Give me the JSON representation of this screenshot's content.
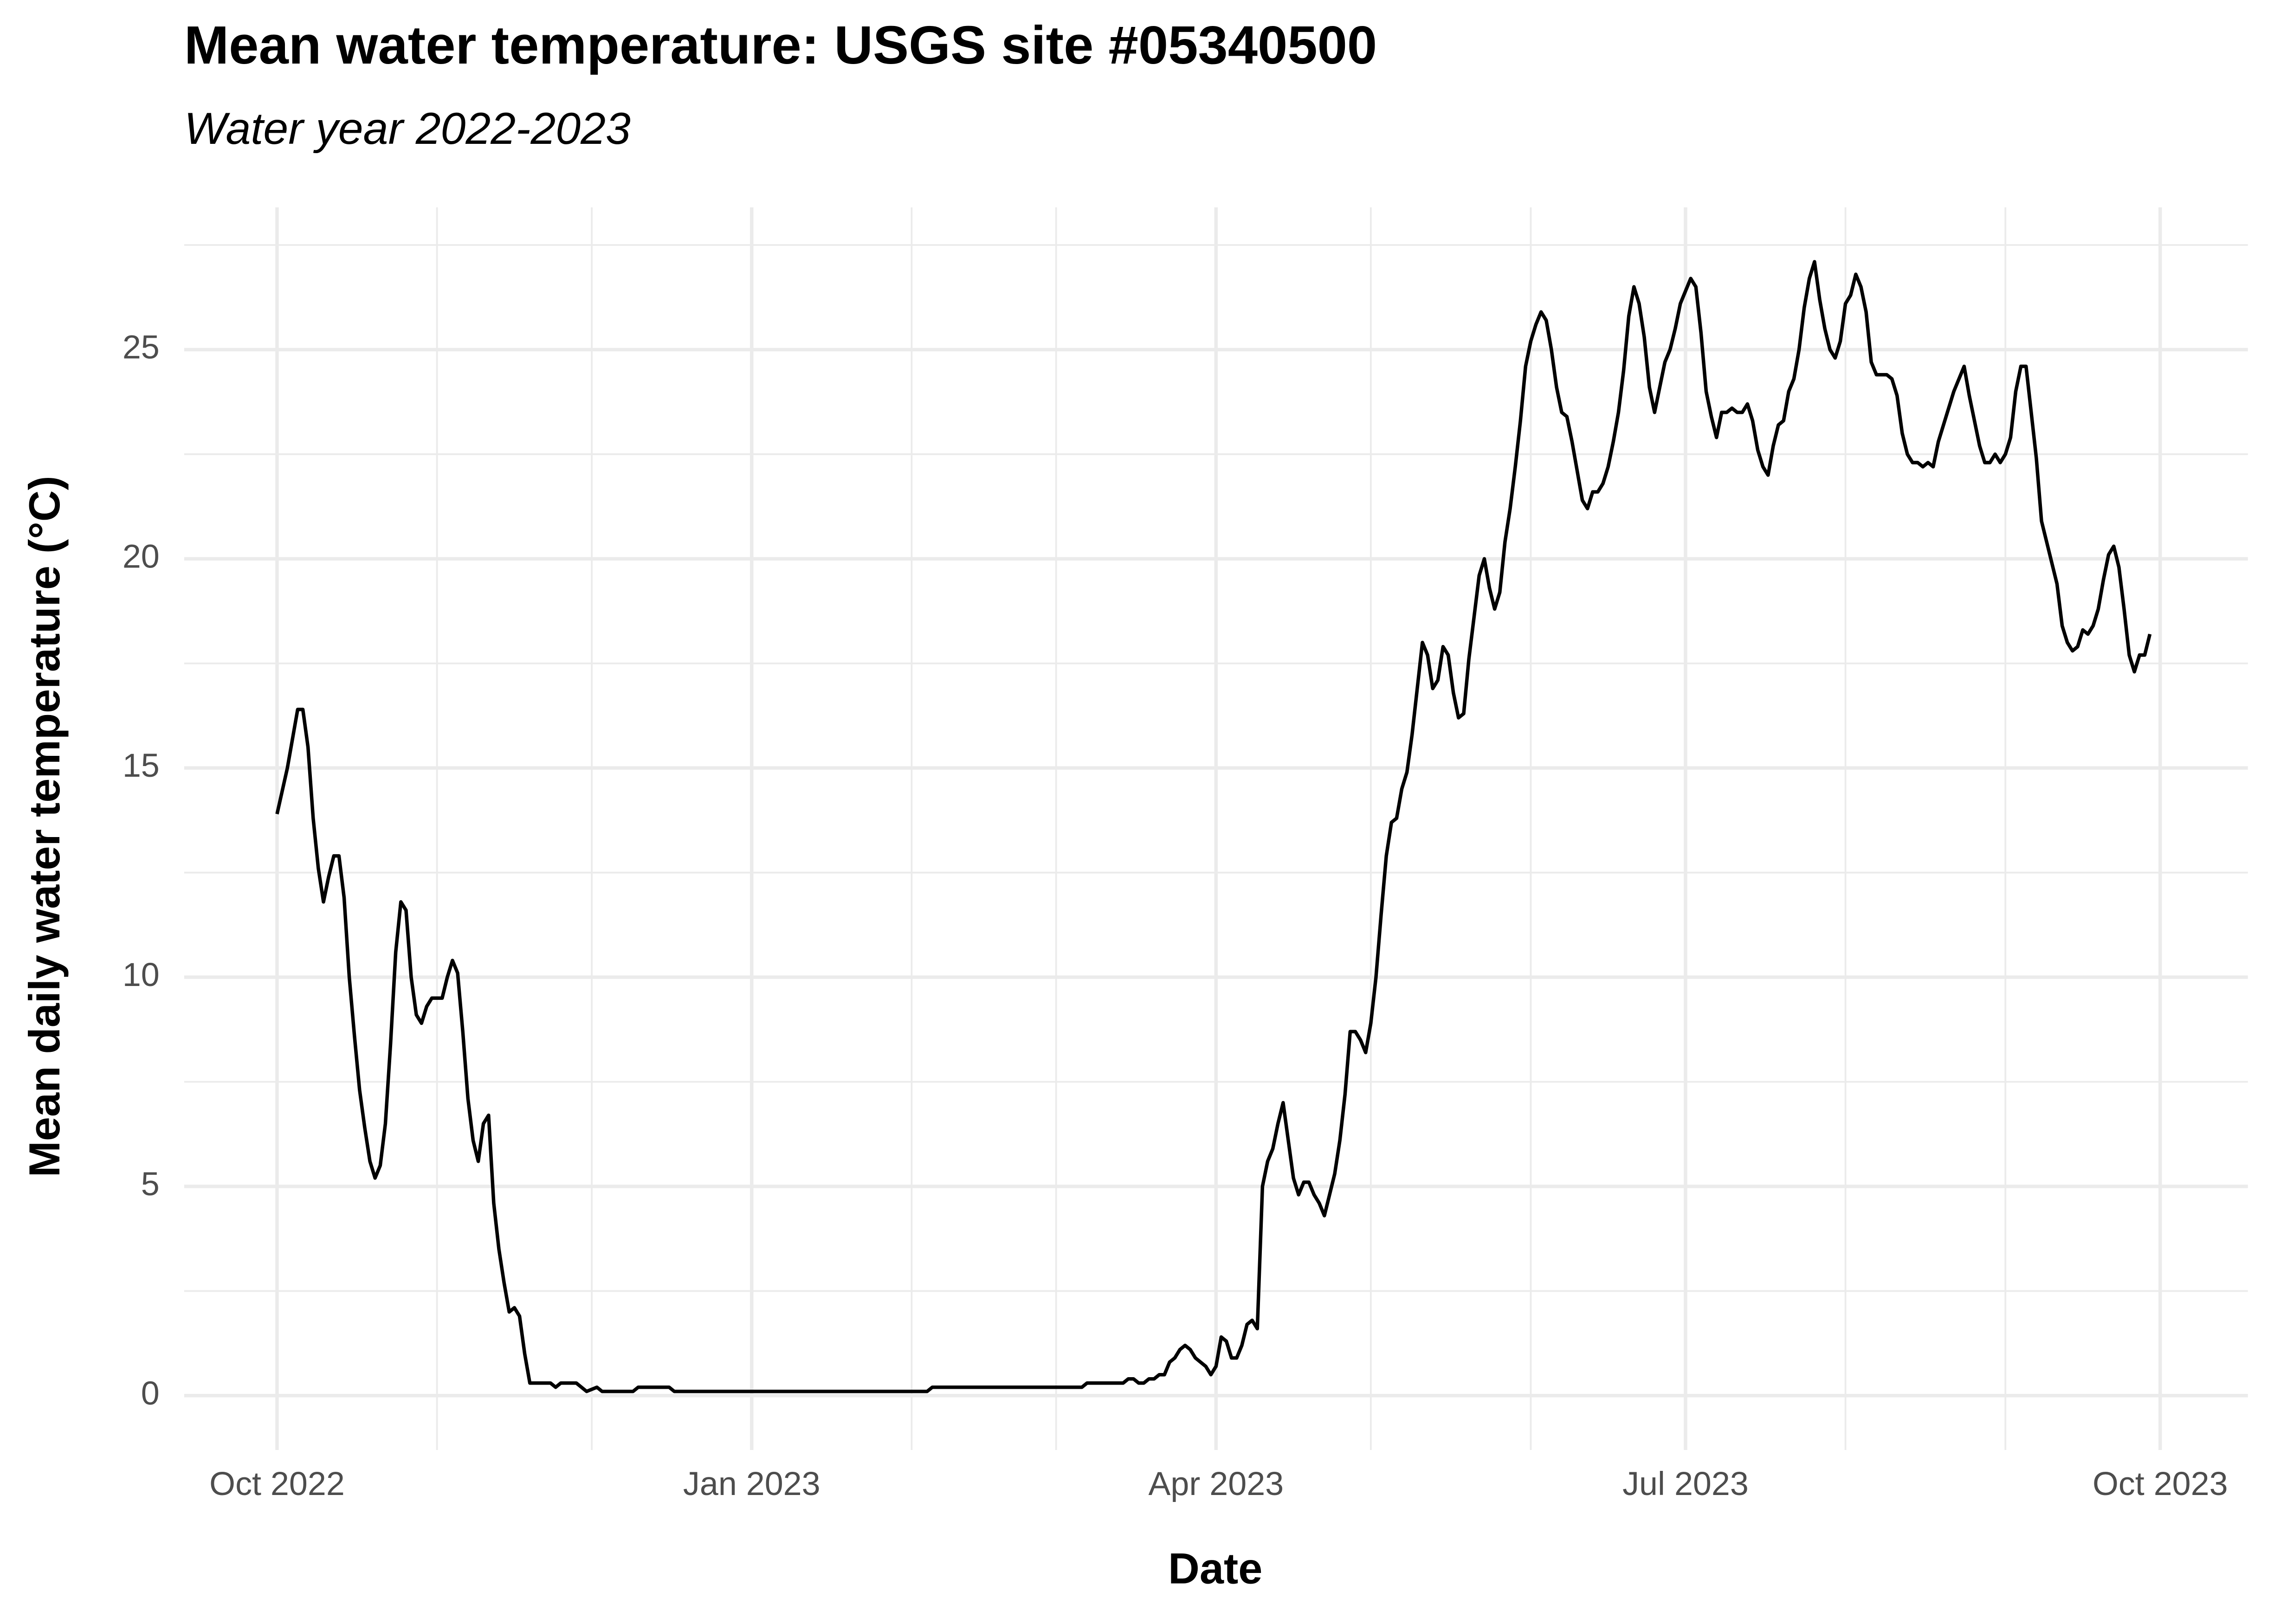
{
  "chart_data": {
    "type": "line",
    "title": "Mean water temperature: USGS site #05340500",
    "subtitle": "Water year 2022-2023",
    "x_label": "Date",
    "y_label": "Mean daily water temperature (°C)",
    "color": "#000000",
    "grid": true,
    "xlim": [
      "2022-09-13",
      "2023-10-18"
    ],
    "ylim": [
      -1.3,
      28.4
    ],
    "xticks": [
      {
        "value": "2022-10-01",
        "label": "Oct 2022"
      },
      {
        "value": "2023-01-01",
        "label": "Jan 2023"
      },
      {
        "value": "2023-04-01",
        "label": "Apr 2023"
      },
      {
        "value": "2023-07-01",
        "label": "Jul 2023"
      },
      {
        "value": "2023-10-01",
        "label": "Oct 2023"
      }
    ],
    "x_minor_ticks": [
      "2022-11-01",
      "2022-12-01",
      "2023-02-01",
      "2023-03-01",
      "2023-05-01",
      "2023-06-01",
      "2023-08-01",
      "2023-09-01"
    ],
    "yticks": [
      0,
      5,
      10,
      15,
      20,
      25
    ],
    "y_minor_ticks": [
      2.5,
      7.5,
      12.5,
      17.5,
      22.5,
      27.5
    ],
    "x": [
      "2022-10-01",
      "2022-10-03",
      "2022-10-05",
      "2022-10-06",
      "2022-10-07",
      "2022-10-08",
      "2022-10-09",
      "2022-10-10",
      "2022-10-11",
      "2022-10-12",
      "2022-10-13",
      "2022-10-14",
      "2022-10-15",
      "2022-10-16",
      "2022-10-17",
      "2022-10-18",
      "2022-10-19",
      "2022-10-20",
      "2022-10-21",
      "2022-10-22",
      "2022-10-23",
      "2022-10-24",
      "2022-10-25",
      "2022-10-26",
      "2022-10-27",
      "2022-10-28",
      "2022-10-29",
      "2022-10-30",
      "2022-10-31",
      "2022-11-01",
      "2022-11-02",
      "2022-11-03",
      "2022-11-04",
      "2022-11-05",
      "2022-11-06",
      "2022-11-07",
      "2022-11-08",
      "2022-11-09",
      "2022-11-10",
      "2022-11-11",
      "2022-11-12",
      "2022-11-13",
      "2022-11-14",
      "2022-11-15",
      "2022-11-16",
      "2022-11-17",
      "2022-11-18",
      "2022-11-19",
      "2022-11-21",
      "2022-11-23",
      "2022-11-24",
      "2022-11-25",
      "2022-11-28",
      "2022-11-30",
      "2022-12-02",
      "2022-12-03",
      "2022-12-09",
      "2022-12-10",
      "2022-12-16",
      "2022-12-17",
      "2023-02-04",
      "2023-02-05",
      "2023-03-06",
      "2023-03-07",
      "2023-03-14",
      "2023-03-15",
      "2023-03-16",
      "2023-03-17",
      "2023-03-18",
      "2023-03-19",
      "2023-03-20",
      "2023-03-21",
      "2023-03-22",
      "2023-03-23",
      "2023-03-24",
      "2023-03-25",
      "2023-03-26",
      "2023-03-27",
      "2023-03-28",
      "2023-03-30",
      "2023-03-31",
      "2023-04-01",
      "2023-04-02",
      "2023-04-03",
      "2023-04-04",
      "2023-04-05",
      "2023-04-06",
      "2023-04-07",
      "2023-04-08",
      "2023-04-09",
      "2023-04-10",
      "2023-04-11",
      "2023-04-12",
      "2023-04-13",
      "2023-04-14",
      "2023-04-15",
      "2023-04-16",
      "2023-04-17",
      "2023-04-18",
      "2023-04-19",
      "2023-04-20",
      "2023-04-21",
      "2023-04-22",
      "2023-04-23",
      "2023-04-24",
      "2023-04-25",
      "2023-04-26",
      "2023-04-27",
      "2023-04-28",
      "2023-04-29",
      "2023-04-30",
      "2023-05-01",
      "2023-05-02",
      "2023-05-03",
      "2023-05-04",
      "2023-05-05",
      "2023-05-06",
      "2023-05-07",
      "2023-05-08",
      "2023-05-09",
      "2023-05-10",
      "2023-05-11",
      "2023-05-12",
      "2023-05-13",
      "2023-05-14",
      "2023-05-15",
      "2023-05-16",
      "2023-05-17",
      "2023-05-18",
      "2023-05-19",
      "2023-05-20",
      "2023-05-21",
      "2023-05-22",
      "2023-05-23",
      "2023-05-24",
      "2023-05-25",
      "2023-05-26",
      "2023-05-27",
      "2023-05-28",
      "2023-05-29",
      "2023-05-30",
      "2023-05-31",
      "2023-06-01",
      "2023-06-02",
      "2023-06-03",
      "2023-06-04",
      "2023-06-05",
      "2023-06-06",
      "2023-06-07",
      "2023-06-08",
      "2023-06-09",
      "2023-06-10",
      "2023-06-11",
      "2023-06-12",
      "2023-06-13",
      "2023-06-14",
      "2023-06-15",
      "2023-06-16",
      "2023-06-17",
      "2023-06-18",
      "2023-06-19",
      "2023-06-20",
      "2023-06-21",
      "2023-06-22",
      "2023-06-23",
      "2023-06-24",
      "2023-06-25",
      "2023-06-26",
      "2023-06-27",
      "2023-06-28",
      "2023-06-29",
      "2023-06-30",
      "2023-07-01",
      "2023-07-02",
      "2023-07-03",
      "2023-07-04",
      "2023-07-05",
      "2023-07-06",
      "2023-07-07",
      "2023-07-08",
      "2023-07-09",
      "2023-07-10",
      "2023-07-11",
      "2023-07-12",
      "2023-07-13",
      "2023-07-14",
      "2023-07-15",
      "2023-07-16",
      "2023-07-17",
      "2023-07-18",
      "2023-07-19",
      "2023-07-20",
      "2023-07-21",
      "2023-07-22",
      "2023-07-23",
      "2023-07-24",
      "2023-07-25",
      "2023-07-26",
      "2023-07-27",
      "2023-07-28",
      "2023-07-29",
      "2023-07-30",
      "2023-07-31",
      "2023-08-01",
      "2023-08-02",
      "2023-08-03",
      "2023-08-04",
      "2023-08-05",
      "2023-08-06",
      "2023-08-07",
      "2023-08-08",
      "2023-08-09",
      "2023-08-10",
      "2023-08-11",
      "2023-08-12",
      "2023-08-13",
      "2023-08-14",
      "2023-08-15",
      "2023-08-16",
      "2023-08-17",
      "2023-08-18",
      "2023-08-19",
      "2023-08-20",
      "2023-08-21",
      "2023-08-22",
      "2023-08-23",
      "2023-08-24",
      "2023-08-25",
      "2023-08-26",
      "2023-08-27",
      "2023-08-28",
      "2023-08-29",
      "2023-08-30",
      "2023-08-31",
      "2023-09-01",
      "2023-09-02",
      "2023-09-03",
      "2023-09-04",
      "2023-09-05",
      "2023-09-06",
      "2023-09-07",
      "2023-09-08",
      "2023-09-09",
      "2023-09-10",
      "2023-09-11",
      "2023-09-12",
      "2023-09-13",
      "2023-09-14",
      "2023-09-15",
      "2023-09-16",
      "2023-09-17",
      "2023-09-18",
      "2023-09-19",
      "2023-09-20",
      "2023-09-21",
      "2023-09-22",
      "2023-09-23",
      "2023-09-24",
      "2023-09-25",
      "2023-09-26",
      "2023-09-27",
      "2023-09-28",
      "2023-09-29"
    ],
    "values": [
      13.9,
      15.0,
      16.4,
      16.4,
      15.5,
      13.8,
      12.6,
      11.8,
      12.4,
      12.9,
      12.9,
      11.9,
      10.0,
      8.6,
      7.3,
      6.4,
      5.6,
      5.2,
      5.5,
      6.5,
      8.4,
      10.6,
      11.8,
      11.6,
      10.0,
      9.1,
      8.9,
      9.3,
      9.5,
      9.5,
      9.5,
      10.0,
      10.4,
      10.1,
      8.7,
      7.1,
      6.1,
      5.6,
      6.5,
      6.7,
      4.6,
      3.5,
      2.7,
      2.0,
      2.1,
      1.9,
      1.0,
      0.3,
      0.3,
      0.3,
      0.2,
      0.3,
      0.3,
      0.1,
      0.2,
      0.1,
      0.1,
      0.2,
      0.2,
      0.1,
      0.1,
      0.2,
      0.2,
      0.3,
      0.3,
      0.4,
      0.4,
      0.3,
      0.3,
      0.4,
      0.4,
      0.5,
      0.5,
      0.8,
      0.9,
      1.1,
      1.2,
      1.1,
      0.9,
      0.7,
      0.5,
      0.7,
      1.4,
      1.3,
      0.9,
      0.9,
      1.2,
      1.7,
      1.8,
      1.6,
      5.0,
      5.6,
      5.9,
      6.5,
      7.0,
      6.1,
      5.2,
      4.8,
      5.1,
      5.1,
      4.8,
      4.6,
      4.3,
      4.8,
      5.3,
      6.1,
      7.2,
      8.7,
      8.7,
      8.5,
      8.2,
      8.9,
      10.0,
      11.5,
      12.9,
      13.7,
      13.8,
      14.5,
      14.9,
      15.8,
      16.9,
      18.0,
      17.7,
      16.9,
      17.1,
      17.9,
      17.7,
      16.8,
      16.2,
      16.3,
      17.6,
      18.6,
      19.6,
      20.0,
      19.3,
      18.8,
      19.2,
      20.4,
      21.2,
      22.2,
      23.3,
      24.6,
      25.2,
      25.6,
      25.9,
      25.7,
      25.0,
      24.1,
      23.5,
      23.4,
      22.8,
      22.1,
      21.4,
      21.2,
      21.6,
      21.6,
      21.8,
      22.2,
      22.8,
      23.5,
      24.5,
      25.8,
      26.5,
      26.1,
      25.3,
      24.1,
      23.5,
      24.1,
      24.7,
      25.0,
      25.5,
      26.1,
      26.4,
      26.7,
      26.5,
      25.4,
      24.0,
      23.4,
      22.9,
      23.5,
      23.5,
      23.6,
      23.5,
      23.5,
      23.7,
      23.3,
      22.6,
      22.2,
      22.0,
      22.7,
      23.2,
      23.3,
      24.0,
      24.3,
      25.0,
      26.0,
      26.7,
      27.1,
      26.2,
      25.5,
      25.0,
      24.8,
      25.2,
      26.1,
      26.3,
      26.8,
      26.5,
      25.9,
      24.7,
      24.4,
      24.4,
      24.4,
      24.3,
      23.9,
      23.0,
      22.5,
      22.3,
      22.3,
      22.2,
      22.3,
      22.2,
      22.8,
      23.2,
      23.6,
      24.0,
      24.3,
      24.6,
      23.9,
      23.3,
      22.7,
      22.3,
      22.3,
      22.5,
      22.3,
      22.5,
      22.9,
      24.0,
      24.6,
      24.6,
      23.5,
      22.4,
      20.9,
      20.4,
      19.9,
      19.4,
      18.4,
      18.0,
      17.8,
      17.9,
      18.3,
      18.2,
      18.4,
      18.8,
      19.5,
      20.1,
      20.3,
      19.8,
      18.8,
      17.7,
      17.3,
      17.7,
      17.7,
      18.2
    ]
  }
}
